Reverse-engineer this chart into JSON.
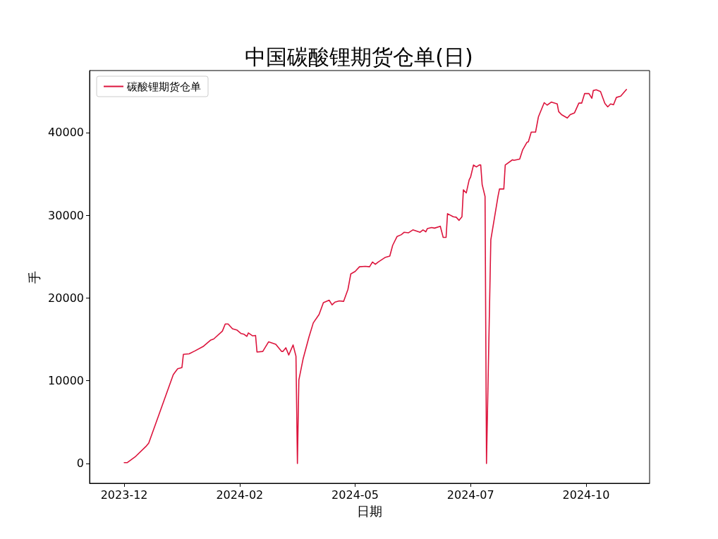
{
  "chart_data": {
    "type": "line",
    "title": "中国碳酸锂期货仓单(日)",
    "xlabel": "日期",
    "ylabel": "手",
    "legend": "top left",
    "grid": false,
    "xlim": [
      "2023-11-07",
      "2024-11-29"
    ],
    "ylim": [
      -2390,
      47500
    ],
    "xticks": [
      {
        "value": "2023-12-01",
        "label": "2023-12"
      },
      {
        "value": "2024-02-19",
        "label": "2024-02"
      },
      {
        "value": "2024-05-09",
        "label": "2024-05"
      },
      {
        "value": "2024-07-28",
        "label": "2024-07"
      },
      {
        "value": "2024-10-16",
        "label": "2024-10"
      }
    ],
    "yticks": [
      0,
      10000,
      20000,
      30000,
      40000
    ],
    "x": [
      "2023-12-01",
      "2023-12-03",
      "2023-12-09",
      "2023-12-16",
      "2023-12-18",
      "2024-01-04",
      "2024-01-07",
      "2024-01-10",
      "2024-01-11",
      "2024-01-15",
      "2024-01-19",
      "2024-01-25",
      "2024-01-30",
      "2024-02-01",
      "2024-02-07",
      "2024-02-09",
      "2024-02-11",
      "2024-02-14",
      "2024-02-17",
      "2024-02-20",
      "2024-02-22",
      "2024-02-24",
      "2024-02-25",
      "2024-02-28",
      "2024-03-01",
      "2024-03-02",
      "2024-03-06",
      "2024-03-10",
      "2024-03-15",
      "2024-03-19",
      "2024-03-20",
      "2024-03-22",
      "2024-03-24",
      "2024-03-27",
      "2024-03-29",
      "2024-03-30",
      "2024-03-31",
      "2024-04-03",
      "2024-04-07",
      "2024-04-10",
      "2024-04-14",
      "2024-04-17",
      "2024-04-21",
      "2024-04-23",
      "2024-04-25",
      "2024-04-28",
      "2024-05-01",
      "2024-05-04",
      "2024-05-06",
      "2024-05-09",
      "2024-05-12",
      "2024-05-16",
      "2024-05-19",
      "2024-05-21",
      "2024-05-23",
      "2024-05-25",
      "2024-05-30",
      "2024-06-02",
      "2024-06-04",
      "2024-06-07",
      "2024-06-10",
      "2024-06-12",
      "2024-06-15",
      "2024-06-18",
      "2024-06-23",
      "2024-06-25",
      "2024-06-27",
      "2024-06-28",
      "2024-07-01",
      "2024-07-03",
      "2024-07-07",
      "2024-07-09",
      "2024-07-11",
      "2024-07-12",
      "2024-07-16",
      "2024-07-18",
      "2024-07-20",
      "2024-07-22",
      "2024-07-23",
      "2024-07-25",
      "2024-07-27",
      "2024-07-28",
      "2024-07-30",
      "2024-08-01",
      "2024-08-03",
      "2024-08-04",
      "2024-08-05",
      "2024-08-07",
      "2024-08-08",
      "2024-08-11",
      "2024-08-16",
      "2024-08-17",
      "2024-08-20",
      "2024-08-21",
      "2024-08-26",
      "2024-08-27",
      "2024-08-31",
      "2024-09-02",
      "2024-09-05",
      "2024-09-06",
      "2024-09-08",
      "2024-09-11",
      "2024-09-13",
      "2024-09-17",
      "2024-09-19",
      "2024-09-22",
      "2024-09-26",
      "2024-09-27",
      "2024-09-29",
      "2024-10-03",
      "2024-10-05",
      "2024-10-08",
      "2024-10-11",
      "2024-10-13",
      "2024-10-15",
      "2024-10-18",
      "2024-10-20",
      "2024-10-21",
      "2024-10-23",
      "2024-10-26",
      "2024-10-29",
      "2024-10-31",
      "2024-11-02",
      "2024-11-04",
      "2024-11-06",
      "2024-11-09",
      "2024-11-13"
    ],
    "series": [
      {
        "name": "碳酸锂期货仓单",
        "color": "#dc143c",
        "values": [
          100,
          100,
          870,
          2050,
          2470,
          10750,
          11450,
          11600,
          13200,
          13260,
          13610,
          14180,
          14930,
          15050,
          16000,
          16860,
          16860,
          16290,
          16140,
          15710,
          15620,
          15370,
          15780,
          15430,
          15480,
          13470,
          13550,
          14700,
          14410,
          13550,
          13550,
          13990,
          13120,
          14330,
          12970,
          0,
          10100,
          12690,
          15280,
          17000,
          18020,
          19450,
          19740,
          19170,
          19510,
          19660,
          19600,
          21040,
          22920,
          23210,
          23780,
          23840,
          23780,
          24360,
          24070,
          24360,
          24930,
          25070,
          26370,
          27430,
          27660,
          27950,
          27890,
          28240,
          27950,
          28240,
          28010,
          28390,
          28530,
          28450,
          28680,
          27330,
          27330,
          30200,
          29830,
          29770,
          29390,
          29830,
          33080,
          32710,
          34290,
          34640,
          36080,
          35850,
          36080,
          36080,
          33720,
          32280,
          0,
          27040,
          32310,
          33180,
          33180,
          36090,
          36710,
          36650,
          36800,
          37890,
          38820,
          38880,
          40060,
          40060,
          41920,
          43620,
          43320,
          43690,
          43470,
          42540,
          42170,
          41760,
          42170,
          42390,
          43570,
          43570,
          44720,
          44720,
          44150,
          45080,
          45180,
          44970,
          43540,
          43110,
          43470,
          43370,
          44250,
          44400,
          45210
        ]
      }
    ]
  }
}
